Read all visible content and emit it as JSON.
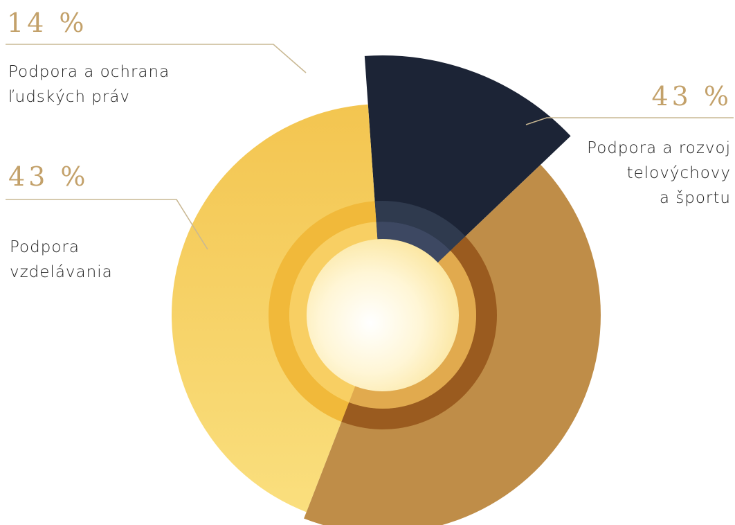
{
  "chart_data": {
    "type": "pie",
    "slices": [
      {
        "value": 14,
        "pct_label": "14 %",
        "label_lines": [
          "Podpora a ochrana",
          "ľudských práv"
        ],
        "color": "#1c2436"
      },
      {
        "value": 43,
        "pct_label": "43 %",
        "label_lines": [
          "Podpora a rozvoj",
          "telovýchovy",
          "a športu"
        ],
        "color": "#bf8d48"
      },
      {
        "value": 43,
        "pct_label": "43 %",
        "label_lines": [
          "Podpora",
          "vzdelávania"
        ],
        "color": "#f8d467"
      }
    ]
  }
}
